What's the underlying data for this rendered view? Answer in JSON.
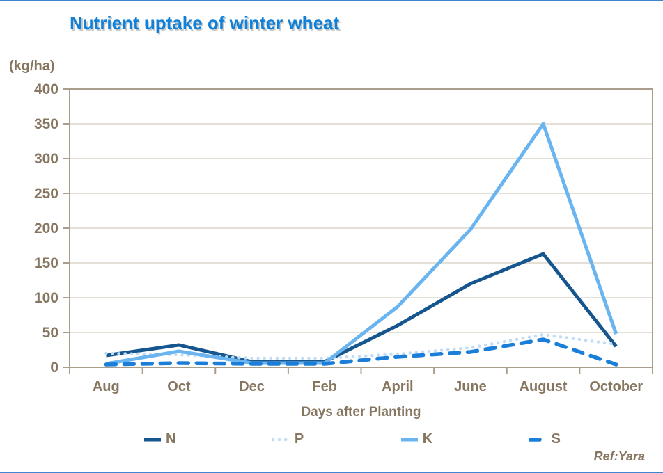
{
  "page": {
    "title": "Nutrient uptake of winter wheat",
    "y_unit_label": "(kg/ha)",
    "x_axis_title": "Days after Planting",
    "reference": "Ref:Yara",
    "colors": {
      "title_blue": "#1080d8",
      "text_brown": "#86765f",
      "frame": "#a89e8b",
      "gridline": "#c8c0b2",
      "edge_line_blue": "#3d85d1"
    }
  },
  "chart_data": {
    "type": "line",
    "title": "Nutrient uptake of winter wheat",
    "xlabel": "Days after Planting",
    "ylabel": "(kg/ha)",
    "categories": [
      "Aug",
      "Oct",
      "Dec",
      "Feb",
      "April",
      "June",
      "August",
      "October"
    ],
    "ylim": [
      0,
      400
    ],
    "ytick_step": 50,
    "grid": "horizontal",
    "legend_position": "bottom",
    "series": [
      {
        "name": "N",
        "color": "#16568e",
        "style": "solid",
        "values": [
          17,
          32,
          8,
          8,
          60,
          120,
          163,
          30
        ]
      },
      {
        "name": "P",
        "color": "#c0dcf6",
        "style": "dotted",
        "values": [
          20,
          18,
          13,
          13,
          19,
          28,
          47,
          33
        ]
      },
      {
        "name": "K",
        "color": "#6ab4f0",
        "style": "solid",
        "values": [
          5,
          23,
          6,
          6,
          87,
          198,
          350,
          48
        ]
      },
      {
        "name": "S",
        "color": "#1b7fd9",
        "style": "dashed",
        "values": [
          4,
          6,
          5,
          5,
          15,
          22,
          40,
          4
        ]
      }
    ]
  }
}
